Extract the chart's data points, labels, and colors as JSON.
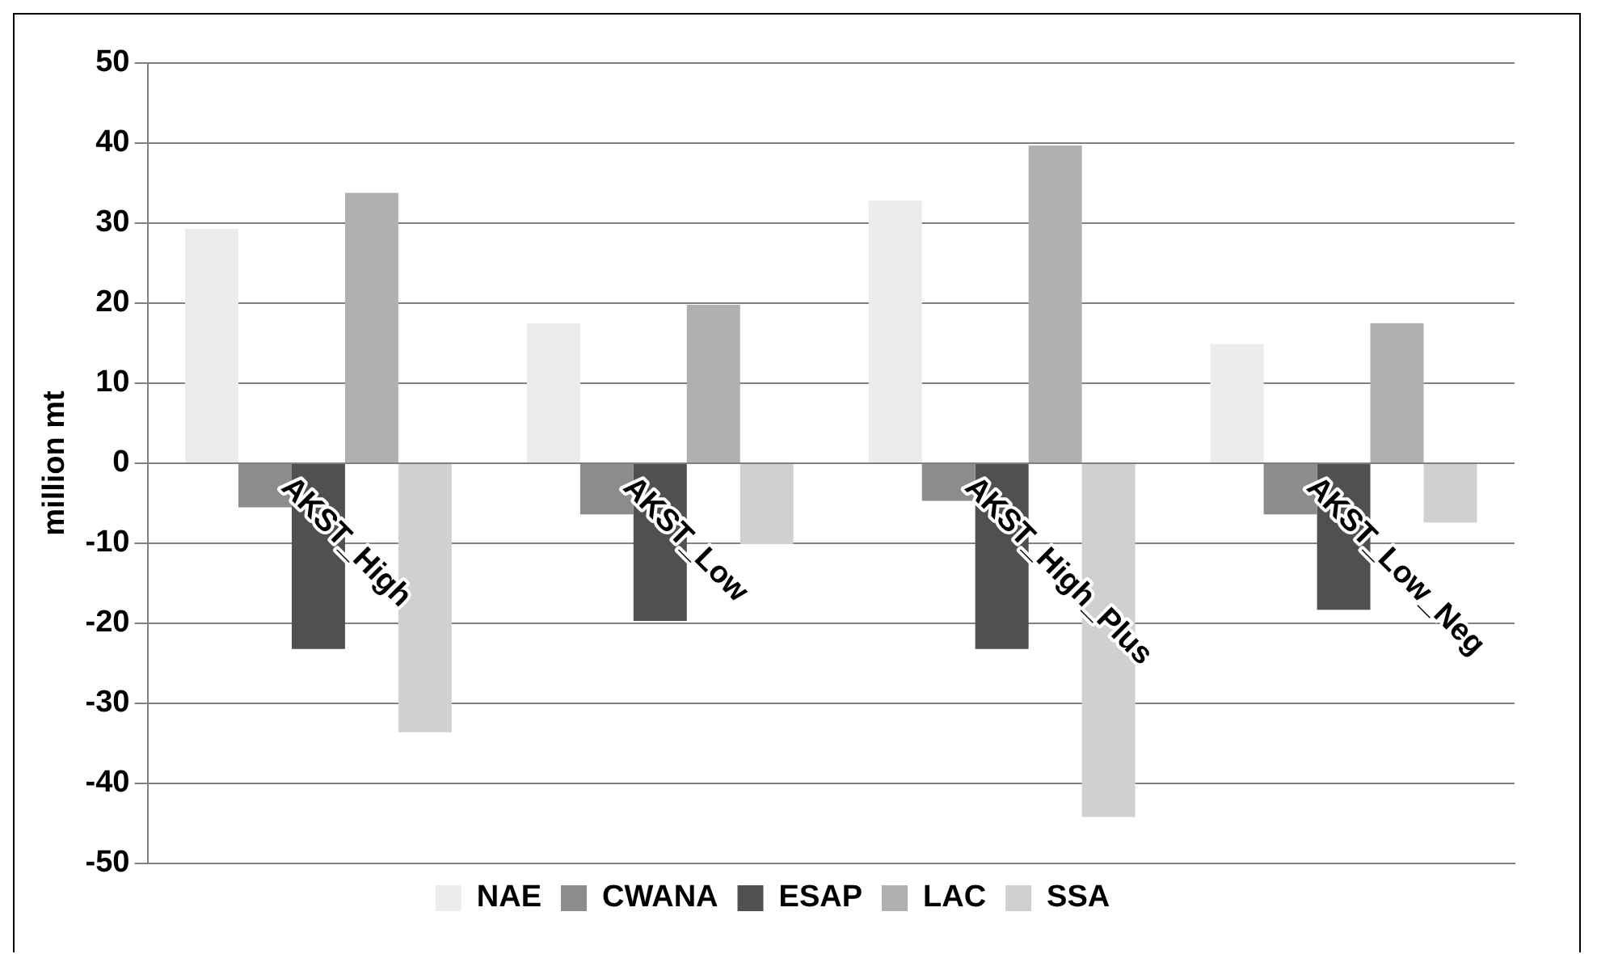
{
  "chart_data": {
    "type": "bar",
    "ylabel": "million mt",
    "categories": [
      "AKST_High",
      "AKST_Low",
      "AKST_High_Plus",
      "AKST_Low_Neg"
    ],
    "series": [
      {
        "name": "NAE",
        "color": "#ececec",
        "values": [
          29.3,
          17.5,
          32.8,
          14.9
        ]
      },
      {
        "name": "CWANA",
        "color": "#8c8c8c",
        "values": [
          -5.5,
          -6.4,
          -4.7,
          -6.4
        ]
      },
      {
        "name": "ESAP",
        "color": "#505050",
        "values": [
          -23.2,
          -19.7,
          -23.2,
          -18.3
        ]
      },
      {
        "name": "LAC",
        "color": "#b0b0b0",
        "values": [
          33.8,
          19.8,
          39.7,
          17.5
        ]
      },
      {
        "name": "SSA",
        "color": "#d0d0d0",
        "values": [
          -33.6,
          -10.1,
          -44.2,
          -7.4
        ]
      }
    ],
    "ylim": [
      -50,
      50
    ],
    "yticks": [
      -50,
      -40,
      -30,
      -20,
      -10,
      0,
      10,
      20,
      30,
      40,
      50
    ],
    "grid": "y",
    "legend": "bottom"
  }
}
